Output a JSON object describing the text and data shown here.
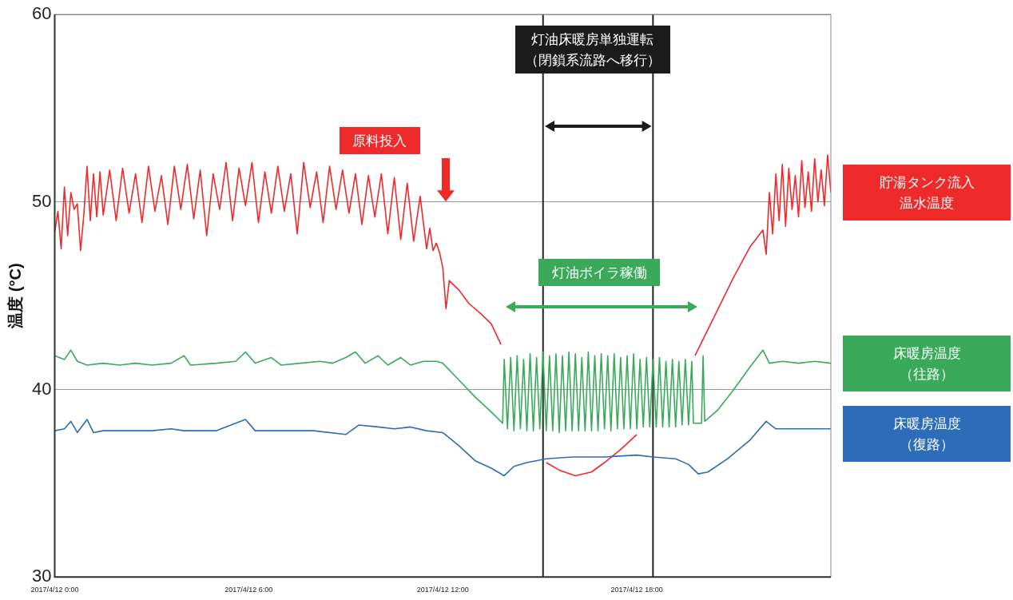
{
  "chart_data": {
    "type": "line",
    "ylabel": "温度 (°C)",
    "xlim": [
      "2017-04-12T00:00",
      "2017-04-13T00:00"
    ],
    "xticks": [
      {
        "value": "2017-04-12T00:00",
        "label": "2017/4/12 0:00"
      },
      {
        "value": "2017-04-12T06:00",
        "label": "2017/4/12 6:00"
      },
      {
        "value": "2017-04-12T12:00",
        "label": "2017/4/12 12:00"
      },
      {
        "value": "2017-04-12T18:00",
        "label": "2017/4/12 18:00"
      }
    ],
    "ylim": [
      30,
      60
    ],
    "yticks": [
      30,
      40,
      50,
      60
    ],
    "grid": "y",
    "legend": "right",
    "marker": "none",
    "line_style": "solid",
    "ref_lines": [
      {
        "axis": "x",
        "value": "2017-04-12T15:06",
        "color": "#222222"
      },
      {
        "axis": "x",
        "value": "2017-04-12T18:30",
        "color": "#222222"
      }
    ],
    "annotations": [
      "原料投入",
      "灯油床暖房単独運転（閉鎖系流路へ移行）",
      "灯油ボイラ稼働"
    ],
    "series": [
      {
        "name": "貯湯タンク流入温水温度",
        "color": "#ee2a2a",
        "x": [
          "2017-04-12T00:00",
          "2017-04-12T00:06",
          "2017-04-12T00:12",
          "2017-04-12T00:18",
          "2017-04-12T00:24",
          "2017-04-12T00:30",
          "2017-04-12T00:36",
          "2017-04-12T00:42",
          "2017-04-12T00:48",
          "2017-04-12T00:54",
          "2017-04-12T01:00",
          "2017-04-12T01:06",
          "2017-04-12T01:12",
          "2017-04-12T01:18",
          "2017-04-12T01:24",
          "2017-04-12T01:30",
          "2017-04-12T01:42",
          "2017-04-12T01:54",
          "2017-04-12T02:06",
          "2017-04-12T02:18",
          "2017-04-12T02:30",
          "2017-04-12T02:42",
          "2017-04-12T02:54",
          "2017-04-12T03:06",
          "2017-04-12T03:18",
          "2017-04-12T03:30",
          "2017-04-12T03:42",
          "2017-04-12T03:54",
          "2017-04-12T04:06",
          "2017-04-12T04:18",
          "2017-04-12T04:30",
          "2017-04-12T04:42",
          "2017-04-12T04:54",
          "2017-04-12T05:06",
          "2017-04-12T05:18",
          "2017-04-12T05:30",
          "2017-04-12T05:42",
          "2017-04-12T05:54",
          "2017-04-12T06:06",
          "2017-04-12T06:18",
          "2017-04-12T06:30",
          "2017-04-12T06:42",
          "2017-04-12T06:54",
          "2017-04-12T07:06",
          "2017-04-12T07:18",
          "2017-04-12T07:30",
          "2017-04-12T07:42",
          "2017-04-12T07:54",
          "2017-04-12T08:06",
          "2017-04-12T08:18",
          "2017-04-12T08:30",
          "2017-04-12T08:42",
          "2017-04-12T08:54",
          "2017-04-12T09:06",
          "2017-04-12T09:18",
          "2017-04-12T09:30",
          "2017-04-12T09:42",
          "2017-04-12T09:54",
          "2017-04-12T10:06",
          "2017-04-12T10:18",
          "2017-04-12T10:30",
          "2017-04-12T10:42",
          "2017-04-12T10:54",
          "2017-04-12T11:06",
          "2017-04-12T11:18",
          "2017-04-12T11:30",
          "2017-04-12T11:36",
          "2017-04-12T11:42",
          "2017-04-12T11:48",
          "2017-04-12T11:54",
          "2017-04-12T12:00",
          "2017-04-12T12:06",
          "2017-04-12T12:12",
          "2017-04-12T12:30",
          "2017-04-12T12:48",
          "2017-04-12T13:12",
          "2017-04-12T13:30",
          "2017-04-12T13:48",
          "2017-04-12T13:54",
          "2017-04-12T14:30",
          "2017-04-12T15:12",
          "2017-04-12T15:36",
          "2017-04-12T16:06",
          "2017-04-12T16:36",
          "2017-04-12T17:00",
          "2017-04-12T17:30",
          "2017-04-12T18:00",
          "2017-04-12T19:00",
          "2017-04-12T19:48",
          "2017-04-12T20:24",
          "2017-04-12T21:00",
          "2017-04-12T21:30",
          "2017-04-12T21:54",
          "2017-04-12T22:00",
          "2017-04-12T22:06",
          "2017-04-12T22:12",
          "2017-04-12T22:18",
          "2017-04-12T22:24",
          "2017-04-12T22:30",
          "2017-04-12T22:36",
          "2017-04-12T22:42",
          "2017-04-12T22:48",
          "2017-04-12T22:54",
          "2017-04-12T23:00",
          "2017-04-12T23:06",
          "2017-04-12T23:12",
          "2017-04-12T23:18",
          "2017-04-12T23:24",
          "2017-04-12T23:30",
          "2017-04-12T23:36",
          "2017-04-12T23:42",
          "2017-04-12T23:48",
          "2017-04-12T23:54",
          "2017-04-13T00:00"
        ],
        "values": [
          48.4,
          49.5,
          47.5,
          50.8,
          48.2,
          50.5,
          49.6,
          49.9,
          47.4,
          49.3,
          51.9,
          49.0,
          51.5,
          49.2,
          51.6,
          49.3,
          51.7,
          49.0,
          51.8,
          49.4,
          51.5,
          48.9,
          51.9,
          49.5,
          51.4,
          48.8,
          51.9,
          49.6,
          52.0,
          49.1,
          51.7,
          48.2,
          51.5,
          49.6,
          52.1,
          49.0,
          51.8,
          49.8,
          52.1,
          48.9,
          51.6,
          49.4,
          51.9,
          49.5,
          51.5,
          48.3,
          52.1,
          49.7,
          51.6,
          48.9,
          51.9,
          49.6,
          51.7,
          49.4,
          51.5,
          48.8,
          51.4,
          49.2,
          51.5,
          48.3,
          51.3,
          48.0,
          51.0,
          47.9,
          50.3,
          47.5,
          48.6,
          47.4,
          47.8,
          47.3,
          46.5,
          44.3,
          45.8,
          45.3,
          44.6,
          44.0,
          43.5,
          42.4,
          null,
          null,
          36.1,
          35.7,
          35.4,
          35.6,
          36.1,
          36.8,
          37.6,
          null,
          41.8,
          43.9,
          46.0,
          47.6,
          48.5,
          47.2,
          50.5,
          48.3,
          51.5,
          49.0,
          52.0,
          48.7,
          51.8,
          49.6,
          51.4,
          49.2,
          52.2,
          49.7,
          51.6,
          49.5,
          52.3,
          50.0,
          51.7,
          49.8,
          52.5,
          50.5
        ]
      },
      {
        "name": "床暖房温度（往路）",
        "color": "#3aaa5a",
        "x": [
          "2017-04-12T00:00",
          "2017-04-12T00:18",
          "2017-04-12T00:30",
          "2017-04-12T00:42",
          "2017-04-12T01:00",
          "2017-04-12T01:30",
          "2017-04-12T02:00",
          "2017-04-12T02:30",
          "2017-04-12T03:00",
          "2017-04-12T03:36",
          "2017-04-12T04:00",
          "2017-04-12T04:12",
          "2017-04-12T05:00",
          "2017-04-12T05:36",
          "2017-04-12T05:54",
          "2017-04-12T06:12",
          "2017-04-12T06:42",
          "2017-04-12T07:00",
          "2017-04-12T07:36",
          "2017-04-12T08:12",
          "2017-04-12T08:36",
          "2017-04-12T09:00",
          "2017-04-12T09:18",
          "2017-04-12T09:36",
          "2017-04-12T10:00",
          "2017-04-12T10:18",
          "2017-04-12T10:42",
          "2017-04-12T11:00",
          "2017-04-12T11:24",
          "2017-04-12T11:48",
          "2017-04-12T12:00",
          "2017-04-12T12:30",
          "2017-04-12T13:00",
          "2017-04-12T13:30",
          "2017-04-12T13:51",
          "2017-04-12T13:54",
          "2017-04-12T14:00",
          "2017-04-12T14:06",
          "2017-04-12T14:12",
          "2017-04-12T14:18",
          "2017-04-12T14:24",
          "2017-04-12T14:30",
          "2017-04-12T14:36",
          "2017-04-12T14:42",
          "2017-04-12T14:48",
          "2017-04-12T14:54",
          "2017-04-12T15:00",
          "2017-04-12T15:06",
          "2017-04-12T15:12",
          "2017-04-12T15:18",
          "2017-04-12T15:24",
          "2017-04-12T15:30",
          "2017-04-12T15:36",
          "2017-04-12T15:42",
          "2017-04-12T15:48",
          "2017-04-12T15:54",
          "2017-04-12T16:00",
          "2017-04-12T16:06",
          "2017-04-12T16:12",
          "2017-04-12T16:18",
          "2017-04-12T16:24",
          "2017-04-12T16:30",
          "2017-04-12T16:36",
          "2017-04-12T16:42",
          "2017-04-12T16:48",
          "2017-04-12T16:54",
          "2017-04-12T17:00",
          "2017-04-12T17:06",
          "2017-04-12T17:12",
          "2017-04-12T17:18",
          "2017-04-12T17:24",
          "2017-04-12T17:30",
          "2017-04-12T17:36",
          "2017-04-12T17:42",
          "2017-04-12T17:48",
          "2017-04-12T17:54",
          "2017-04-12T18:00",
          "2017-04-12T18:06",
          "2017-04-12T18:12",
          "2017-04-12T18:18",
          "2017-04-12T18:24",
          "2017-04-12T18:30",
          "2017-04-12T18:36",
          "2017-04-12T18:42",
          "2017-04-12T18:48",
          "2017-04-12T18:54",
          "2017-04-12T19:00",
          "2017-04-12T19:06",
          "2017-04-12T19:12",
          "2017-04-12T19:18",
          "2017-04-12T19:24",
          "2017-04-12T19:30",
          "2017-04-12T19:36",
          "2017-04-12T19:42",
          "2017-04-12T19:45",
          "2017-04-12T20:00",
          "2017-04-12T20:03",
          "2017-04-12T20:06",
          "2017-04-12T20:30",
          "2017-04-12T21:00",
          "2017-04-12T21:30",
          "2017-04-12T21:54",
          "2017-04-12T22:06",
          "2017-04-12T22:30",
          "2017-04-12T23:00",
          "2017-04-12T23:30",
          "2017-04-13T00:00"
        ],
        "values": [
          41.8,
          41.6,
          42.1,
          41.5,
          41.3,
          41.4,
          41.3,
          41.4,
          41.3,
          41.4,
          41.8,
          41.3,
          41.4,
          41.5,
          42.0,
          41.4,
          41.7,
          41.3,
          41.4,
          41.5,
          41.4,
          41.7,
          42.0,
          41.4,
          41.8,
          41.3,
          41.7,
          41.3,
          41.5,
          41.5,
          41.4,
          40.5,
          39.6,
          38.8,
          38.2,
          41.6,
          37.9,
          41.7,
          37.8,
          41.8,
          37.9,
          41.6,
          37.8,
          41.9,
          37.8,
          41.7,
          37.9,
          42.0,
          37.8,
          41.8,
          37.8,
          41.9,
          37.7,
          41.8,
          37.8,
          42.0,
          37.8,
          41.9,
          37.8,
          41.7,
          37.8,
          42.0,
          37.8,
          41.8,
          37.8,
          41.9,
          37.9,
          41.8,
          37.8,
          41.9,
          37.9,
          41.7,
          37.9,
          41.8,
          37.9,
          41.9,
          37.9,
          41.6,
          38.0,
          41.7,
          38.0,
          41.6,
          38.0,
          41.7,
          38.0,
          41.5,
          38.0,
          41.6,
          38.0,
          41.5,
          38.1,
          41.6,
          38.1,
          41.5,
          38.2,
          38.2,
          41.8,
          38.3,
          38.9,
          40.0,
          41.2,
          42.1,
          41.4,
          41.5,
          41.4,
          41.5,
          41.4
        ]
      },
      {
        "name": "床暖房温度（復路）",
        "color": "#2d6cb8",
        "x": [
          "2017-04-12T00:00",
          "2017-04-12T00:18",
          "2017-04-12T00:30",
          "2017-04-12T00:42",
          "2017-04-12T01:00",
          "2017-04-12T01:12",
          "2017-04-12T01:30",
          "2017-04-12T02:00",
          "2017-04-12T03:00",
          "2017-04-12T03:36",
          "2017-04-12T04:00",
          "2017-04-12T05:00",
          "2017-04-12T05:54",
          "2017-04-12T06:12",
          "2017-04-12T07:00",
          "2017-04-12T08:00",
          "2017-04-12T09:00",
          "2017-04-12T09:24",
          "2017-04-12T10:00",
          "2017-04-12T10:30",
          "2017-04-12T11:00",
          "2017-04-12T11:30",
          "2017-04-12T12:00",
          "2017-04-12T12:30",
          "2017-04-12T13:00",
          "2017-04-12T13:30",
          "2017-04-12T13:54",
          "2017-04-12T14:12",
          "2017-04-12T14:36",
          "2017-04-12T15:12",
          "2017-04-12T16:00",
          "2017-04-12T17:00",
          "2017-04-12T18:00",
          "2017-04-12T18:30",
          "2017-04-12T19:12",
          "2017-04-12T19:36",
          "2017-04-12T19:54",
          "2017-04-12T20:12",
          "2017-04-12T20:48",
          "2017-04-12T21:30",
          "2017-04-12T22:00",
          "2017-04-12T22:18",
          "2017-04-12T23:00",
          "2017-04-13T00:00"
        ],
        "values": [
          37.8,
          37.9,
          38.3,
          37.7,
          38.4,
          37.7,
          37.8,
          37.8,
          37.8,
          37.9,
          37.8,
          37.8,
          38.4,
          37.8,
          37.8,
          37.8,
          37.6,
          38.1,
          38.0,
          37.9,
          38.0,
          37.8,
          37.7,
          37.0,
          36.2,
          35.8,
          35.4,
          35.9,
          36.1,
          36.3,
          36.4,
          36.4,
          36.5,
          36.4,
          36.3,
          36.0,
          35.5,
          35.6,
          36.3,
          37.3,
          38.3,
          37.9,
          37.9,
          37.9
        ]
      }
    ]
  }
}
